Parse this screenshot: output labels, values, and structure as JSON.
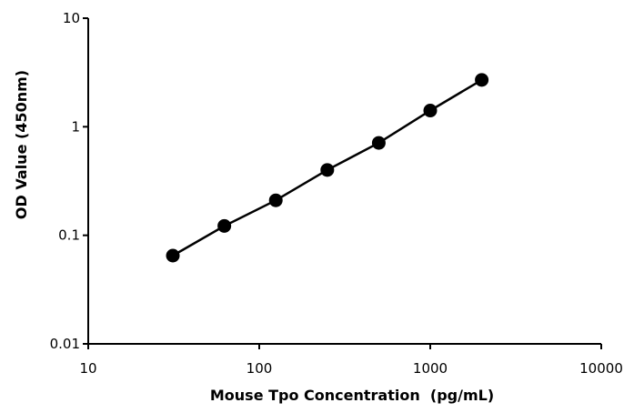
{
  "chart_data": {
    "type": "scatter",
    "title": "",
    "xlabel": "Mouse Tpo Concentration  (pg/mL)",
    "ylabel": "OD Value (450nm)",
    "x_scale": "log",
    "y_scale": "log",
    "xlim": [
      10,
      10000
    ],
    "ylim": [
      0.01,
      10
    ],
    "x_ticks": [
      10,
      100,
      1000,
      10000
    ],
    "x_tick_labels": [
      "10",
      "100",
      "1000",
      "10000"
    ],
    "y_ticks": [
      0.01,
      0.1,
      1,
      10
    ],
    "y_tick_labels": [
      "0.01",
      "0.1",
      "1",
      "10"
    ],
    "grid": false,
    "legend": "none",
    "series": [
      {
        "x": [
          31.25,
          62.5,
          125,
          250,
          500,
          1000,
          2000
        ],
        "y": [
          0.065,
          0.122,
          0.21,
          0.4,
          0.71,
          1.41,
          2.7
        ],
        "color": "#000000",
        "marker": "circle",
        "connected": true
      }
    ]
  }
}
